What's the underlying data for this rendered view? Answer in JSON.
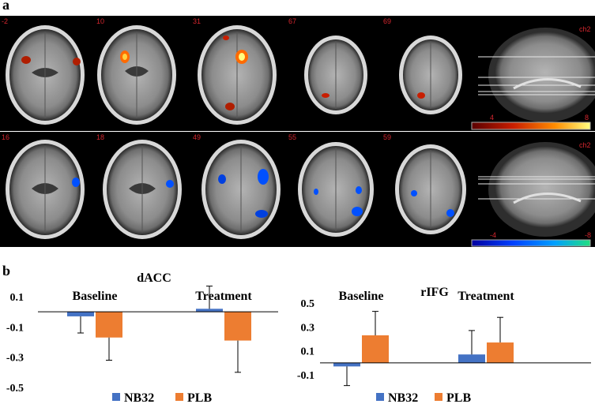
{
  "panel_a": {
    "label": "a",
    "top_row": {
      "slices": [
        "-2",
        "10",
        "31",
        "67",
        "69"
      ],
      "channel": "ch2",
      "colorbar_min": "4",
      "colorbar_max": "8",
      "colormap": [
        "#5a0000",
        "#c81e00",
        "#ff8c00",
        "#ffff80"
      ]
    },
    "bottom_row": {
      "slices": [
        "16",
        "18",
        "49",
        "55",
        "59"
      ],
      "channel": "ch2",
      "colorbar_min": "-4",
      "colorbar_max": "-8",
      "colormap": [
        "#0000a0",
        "#0040ff",
        "#00a0ff",
        "#20e080"
      ]
    }
  },
  "panel_b": {
    "label": "b"
  },
  "colors": {
    "NB32": "#4472C4",
    "PLB": "#ED7D31"
  },
  "chart_data": [
    {
      "type": "bar",
      "title": "dACC",
      "categories": [
        "Baseline",
        "Treatment"
      ],
      "series": [
        {
          "name": "NB32",
          "values": [
            -0.03,
            0.02
          ],
          "error": [
            0.11,
            0.15
          ]
        },
        {
          "name": "PLB",
          "values": [
            -0.17,
            -0.19
          ],
          "error": [
            0.15,
            0.21
          ]
        }
      ],
      "yticks": [
        "0.1",
        "-0.1",
        "-0.3",
        "-0.5"
      ],
      "ylim": [
        -0.5,
        0.1
      ],
      "legend": "bottom"
    },
    {
      "type": "bar",
      "title": "rIFG",
      "categories": [
        "Baseline",
        "Treatment"
      ],
      "series": [
        {
          "name": "NB32",
          "values": [
            -0.03,
            0.07
          ],
          "error": [
            0.16,
            0.2
          ]
        },
        {
          "name": "PLB",
          "values": [
            0.23,
            0.17
          ],
          "error": [
            0.2,
            0.21
          ]
        }
      ],
      "yticks": [
        "0.5",
        "0.3",
        "0.1",
        "-0.1"
      ],
      "ylim": [
        -0.1,
        0.5
      ],
      "legend": "bottom"
    }
  ]
}
